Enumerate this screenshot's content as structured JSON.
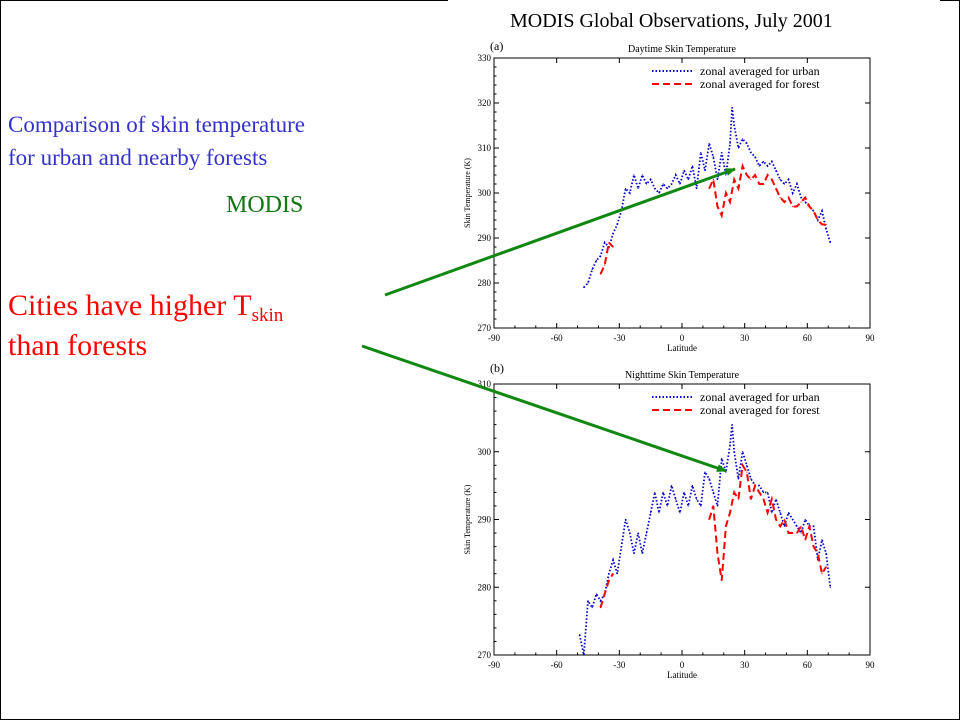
{
  "slide": {
    "comparison_line1": "Comparison of skin temperature",
    "comparison_line2": "for urban and nearby forests",
    "modis_label": "MODIS",
    "cities_main": "Cities have higher T",
    "cities_sub": "skin",
    "cities_line2": "than forests",
    "colors": {
      "comparison": "#3333cc",
      "modis": "#117711",
      "cities": "#ff0000",
      "arrow": "#118811"
    }
  },
  "figure_title": "MODIS Global Observations, July 2001",
  "chart_data": [
    {
      "type": "line",
      "panel_label": "(a)",
      "title": "Daytime Skin Temperature",
      "xlabel": "Latitude",
      "ylabel": "Skin Temperature (K)",
      "xlim": [
        -90,
        90
      ],
      "ylim": [
        270,
        330
      ],
      "xticks": [
        -90,
        -60,
        -30,
        0,
        30,
        60,
        90
      ],
      "yticks": [
        270,
        280,
        290,
        300,
        310,
        320,
        330
      ],
      "legend_position": "top-right",
      "series": [
        {
          "name": "zonal averaged for urban",
          "color": "#0000cc",
          "style": "dotted",
          "x": [
            -47,
            -45,
            -43,
            -41,
            -39,
            -37,
            -35,
            -33,
            -31,
            -29,
            -27,
            -25,
            -23,
            -21,
            -19,
            -17,
            -15,
            -13,
            -11,
            -9,
            -7,
            -5,
            -3,
            -1,
            1,
            3,
            5,
            7,
            9,
            11,
            13,
            15,
            17,
            19,
            21,
            23,
            24,
            25,
            27,
            29,
            31,
            33,
            35,
            37,
            39,
            41,
            43,
            45,
            47,
            49,
            51,
            53,
            55,
            57,
            59,
            61,
            63,
            65,
            67,
            69,
            71
          ],
          "y": [
            279,
            280,
            283,
            285,
            286,
            289,
            288,
            291,
            293,
            296,
            301,
            300,
            304,
            301,
            304,
            302,
            303,
            301,
            300,
            302,
            301,
            302,
            304,
            302,
            305,
            303,
            306,
            301,
            309,
            305,
            311,
            308,
            303,
            309,
            304,
            311,
            319,
            315,
            310,
            312,
            311,
            309,
            308,
            306,
            307,
            306,
            307,
            305,
            303,
            302,
            303,
            300,
            302,
            299,
            298,
            297,
            296,
            294,
            296,
            292,
            289
          ]
        },
        {
          "name": "zonal averaged for forest",
          "color": "#ff0000",
          "style": "dashed",
          "x": [
            -39,
            -37,
            -35,
            -33,
            13,
            15,
            17,
            19,
            21,
            23,
            25,
            27,
            29,
            31,
            33,
            35,
            37,
            39,
            41,
            43,
            45,
            47,
            49,
            51,
            53,
            55,
            57,
            59,
            61,
            63,
            65,
            67,
            69
          ],
          "y": [
            282,
            284,
            289,
            288,
            301,
            303,
            297,
            295,
            300,
            298,
            303,
            301,
            306,
            304,
            303,
            304,
            302,
            302,
            304,
            303,
            301,
            299,
            298,
            299,
            297,
            297,
            298,
            299,
            297,
            296,
            294,
            293,
            293
          ]
        }
      ]
    },
    {
      "type": "line",
      "panel_label": "(b)",
      "title": "Nighttime Skin Temperature",
      "xlabel": "Latitude",
      "ylabel": "Skin Temperature (K)",
      "xlim": [
        -90,
        90
      ],
      "ylim": [
        270,
        310
      ],
      "xticks": [
        -90,
        -60,
        -30,
        0,
        30,
        60,
        90
      ],
      "yticks": [
        270,
        280,
        290,
        300,
        310
      ],
      "legend_position": "top-right",
      "series": [
        {
          "name": "zonal averaged for urban",
          "color": "#0000cc",
          "style": "dotted",
          "x": [
            -49,
            -47,
            -45,
            -43,
            -41,
            -39,
            -37,
            -35,
            -33,
            -31,
            -29,
            -27,
            -25,
            -23,
            -21,
            -19,
            -17,
            -15,
            -13,
            -11,
            -9,
            -7,
            -5,
            -3,
            -1,
            1,
            3,
            5,
            7,
            9,
            11,
            13,
            15,
            17,
            19,
            21,
            23,
            24,
            25,
            27,
            29,
            31,
            33,
            35,
            37,
            39,
            41,
            43,
            45,
            47,
            49,
            51,
            53,
            55,
            57,
            59,
            61,
            63,
            65,
            67,
            69,
            71
          ],
          "y": [
            273,
            270,
            278,
            277,
            279,
            278,
            279,
            282,
            284,
            282,
            286,
            290,
            288,
            285,
            288,
            285,
            288,
            291,
            294,
            291,
            294,
            292,
            295,
            293,
            291,
            294,
            292,
            295,
            293,
            292,
            297,
            296,
            294,
            292,
            299,
            297,
            301,
            304,
            300,
            296,
            300,
            298,
            296,
            295,
            295,
            294,
            294,
            291,
            293,
            291,
            289,
            291,
            290,
            289,
            288,
            290,
            289,
            289,
            284,
            287,
            285,
            280
          ]
        },
        {
          "name": "zonal averaged for forest",
          "color": "#ff0000",
          "style": "dashed",
          "x": [
            -39,
            -37,
            -35,
            -33,
            13,
            15,
            17,
            19,
            21,
            23,
            25,
            27,
            29,
            31,
            33,
            35,
            37,
            39,
            41,
            43,
            45,
            47,
            49,
            51,
            53,
            55,
            57,
            59,
            61,
            63,
            65,
            67,
            69
          ],
          "y": [
            277,
            279,
            281,
            282,
            290,
            292,
            285,
            281,
            289,
            291,
            294,
            293,
            298,
            297,
            293,
            295,
            294,
            293,
            291,
            293,
            290,
            289,
            290,
            288,
            288,
            288,
            289,
            287,
            289,
            286,
            285,
            282,
            283
          ]
        }
      ]
    }
  ]
}
